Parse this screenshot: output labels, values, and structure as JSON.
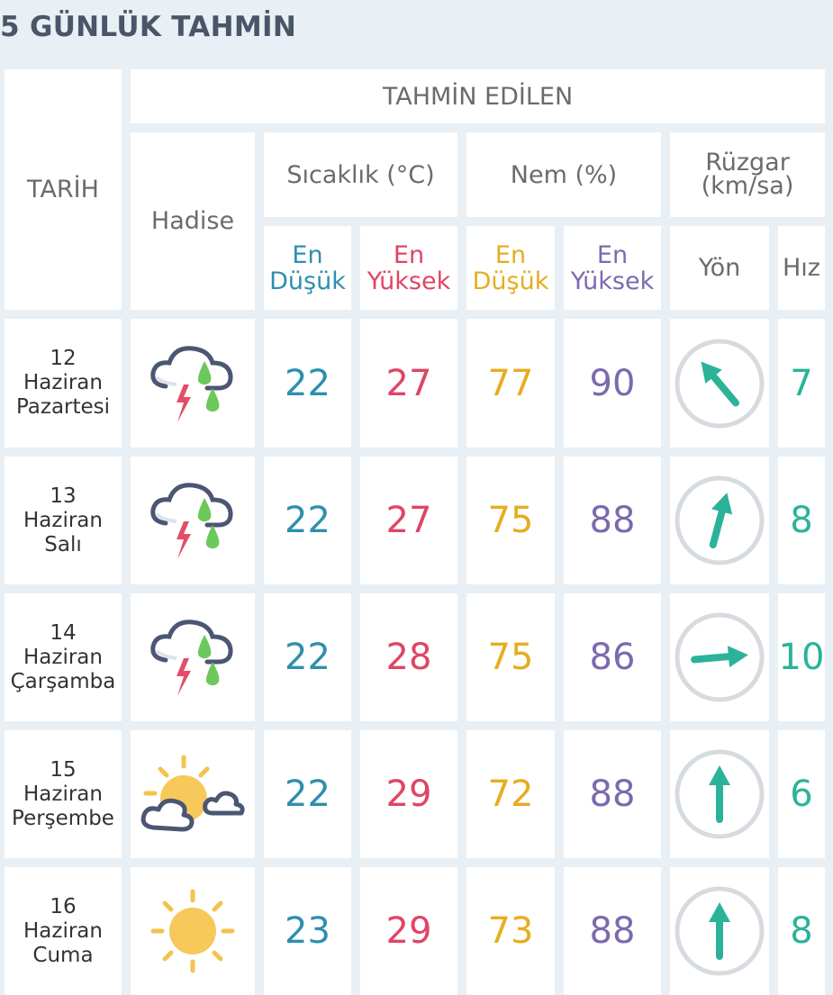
{
  "title": "5 GÜNLÜK TAHMİN",
  "header": {
    "date": "TARİH",
    "predicted": "TAHMİN EDİLEN",
    "event": "Hadise",
    "temperature": "Sıcaklık (°C)",
    "humidity": "Nem (%)",
    "wind": "Rüzgar (km/sa)",
    "temp_min": "En Düşük",
    "temp_max": "En Yüksek",
    "hum_min": "En Düşük",
    "hum_max": "En Yüksek",
    "direction": "Yön",
    "speed": "Hız"
  },
  "colors": {
    "min_temp": "#2e8fae",
    "max_temp": "#df4566",
    "min_hum": "#e6ad1f",
    "max_hum": "#7b6aae",
    "wind": "#2bb39a"
  },
  "rows": [
    {
      "day": "12",
      "month": "Haziran",
      "weekday": "Pazartesi",
      "icon": "thunderstorm-rain-icon",
      "temp_min": "22",
      "temp_max": "27",
      "hum_min": "77",
      "hum_max": "90",
      "wind_dir_deg": -40,
      "wind_speed": "7"
    },
    {
      "day": "13",
      "month": "Haziran",
      "weekday": "Salı",
      "icon": "thunderstorm-rain-icon",
      "temp_min": "22",
      "temp_max": "27",
      "hum_min": "75",
      "hum_max": "88",
      "wind_dir_deg": 15,
      "wind_speed": "8"
    },
    {
      "day": "14",
      "month": "Haziran",
      "weekday": "Çarşamba",
      "icon": "thunderstorm-rain-icon",
      "temp_min": "22",
      "temp_max": "28",
      "hum_min": "75",
      "hum_max": "86",
      "wind_dir_deg": 85,
      "wind_speed": "10"
    },
    {
      "day": "15",
      "month": "Haziran",
      "weekday": "Perşembe",
      "icon": "partly-cloudy-icon",
      "temp_min": "22",
      "temp_max": "29",
      "hum_min": "72",
      "hum_max": "88",
      "wind_dir_deg": 0,
      "wind_speed": "6"
    },
    {
      "day": "16",
      "month": "Haziran",
      "weekday": "Cuma",
      "icon": "sunny-icon",
      "temp_min": "23",
      "temp_max": "29",
      "hum_min": "73",
      "hum_max": "88",
      "wind_dir_deg": 0,
      "wind_speed": "8"
    }
  ]
}
